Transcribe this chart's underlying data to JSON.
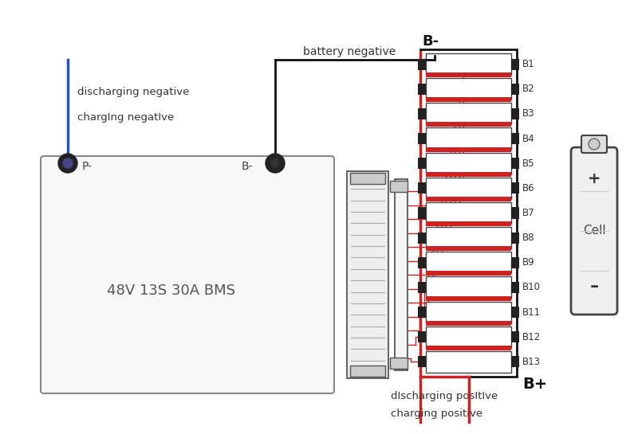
{
  "bg_color": "#ffffff",
  "figsize": [
    8.0,
    5.45
  ],
  "dpi": 100,
  "bms_label": "48V 13S 30A BMS",
  "p_minus_label": "P-",
  "b_minus_label": "B-",
  "discharge_neg_label": "discharging negative",
  "charge_neg_label": "chargIng negatIve",
  "battery_neg_label": "battery negative",
  "b_minus_top": "B-",
  "b_plus": "B+",
  "discharge_pos_label": "dIscharging posItIve",
  "charging_pos_label": "charging positive",
  "cell_labels": [
    "B1",
    "B2",
    "B3",
    "B4",
    "B5",
    "B6",
    "B7",
    "B8",
    "B9",
    "B10",
    "B11",
    "B12",
    "B13"
  ],
  "cell_icon_plus": "+",
  "cell_icon_label": "Cell",
  "cell_icon_minus": "-"
}
